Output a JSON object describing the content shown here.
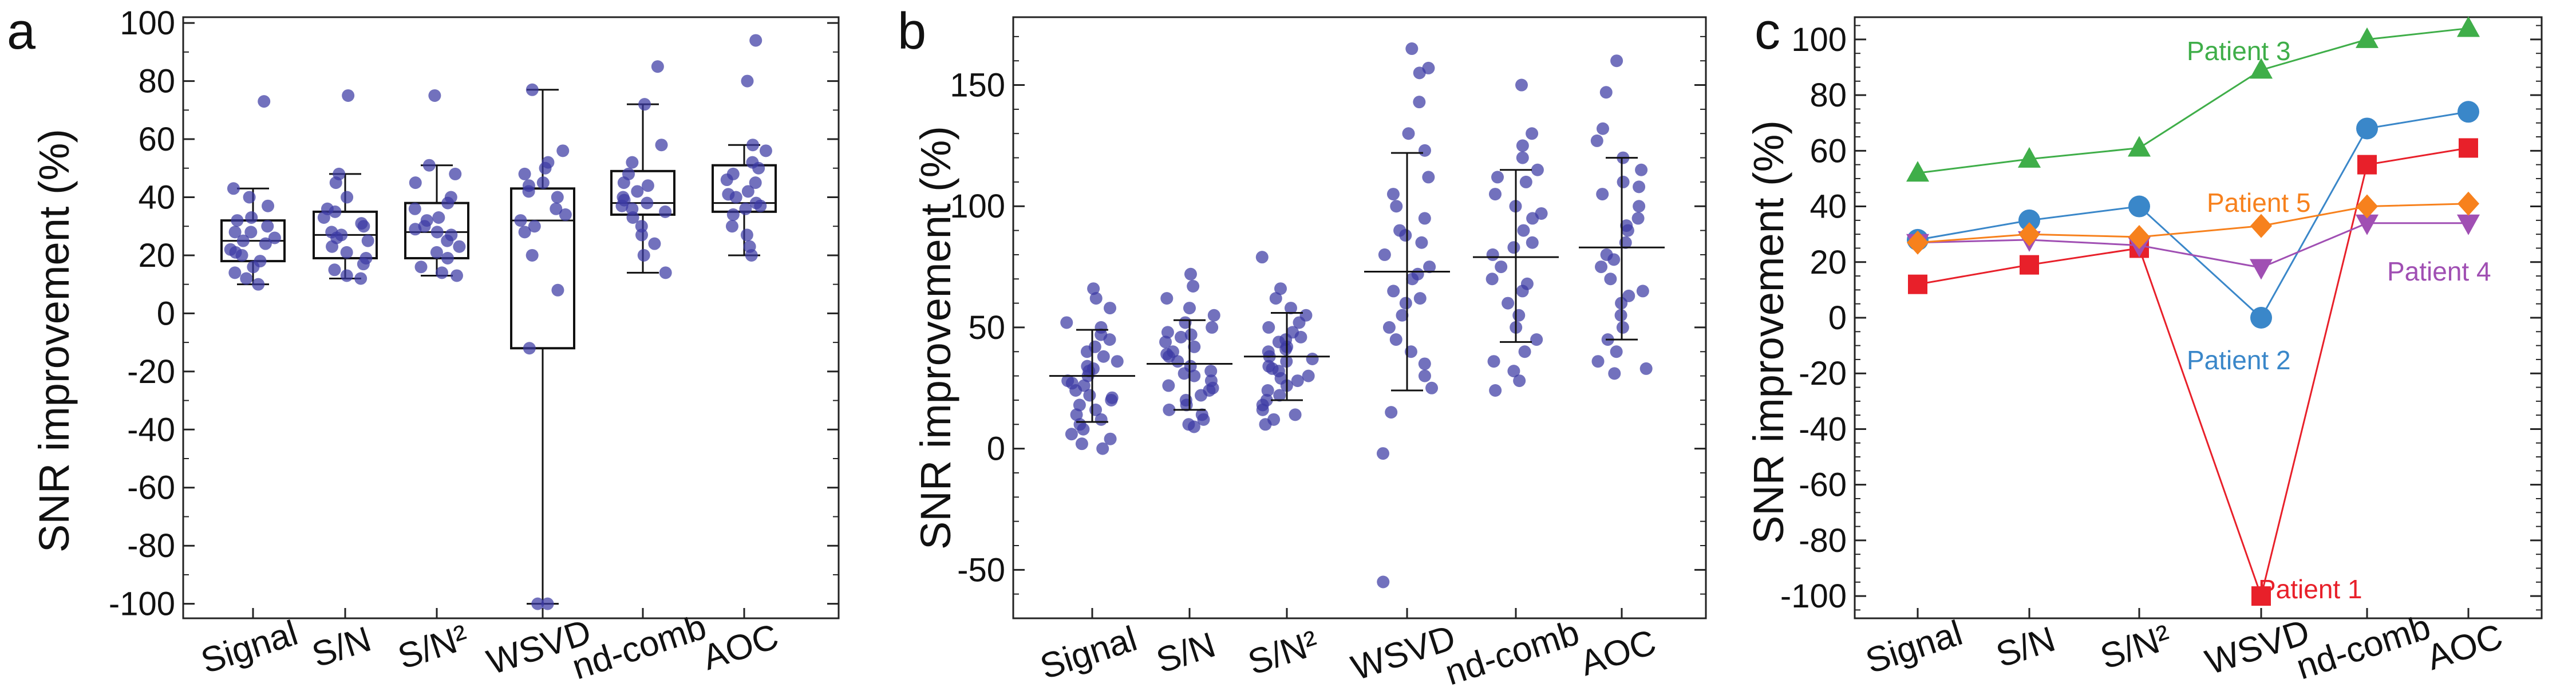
{
  "figure": {
    "panel_labels": [
      "a",
      "b",
      "c"
    ]
  },
  "chart_data": [
    {
      "id": "a",
      "type": "box",
      "panel_label": "a",
      "ylabel": "SNR improvement (%)",
      "categories": [
        "Signal",
        "S/N",
        "S/N²",
        "WSVD",
        "nd-comb",
        "AOC"
      ],
      "ylim": [
        -105,
        102
      ],
      "yticks": [
        100,
        80,
        60,
        40,
        20,
        0,
        -20,
        -40,
        -60,
        -80,
        -100
      ],
      "boxes": [
        {
          "q1": 18,
          "median": 25,
          "q3": 32,
          "whislo": 10,
          "whishi": 43
        },
        {
          "q1": 19,
          "median": 27,
          "q3": 35,
          "whislo": 12,
          "whishi": 48
        },
        {
          "q1": 19,
          "median": 28,
          "q3": 38,
          "whislo": 13,
          "whishi": 51
        },
        {
          "q1": -12,
          "median": 32,
          "q3": 43,
          "whislo": -100,
          "whishi": 77
        },
        {
          "q1": 34,
          "median": 38,
          "q3": 49,
          "whislo": 14,
          "whishi": 72
        },
        {
          "q1": 35,
          "median": 38,
          "q3": 51,
          "whislo": 20,
          "whishi": 58
        }
      ],
      "points": [
        [
          73,
          43,
          40,
          37,
          32,
          30,
          28,
          26,
          25,
          24,
          22,
          20,
          18,
          16,
          14,
          12,
          10,
          28,
          33,
          21
        ],
        [
          75,
          48,
          45,
          40,
          36,
          33,
          30,
          28,
          27,
          25,
          23,
          21,
          19,
          17,
          15,
          13,
          12,
          26,
          31,
          35
        ],
        [
          75,
          51,
          48,
          45,
          40,
          36,
          33,
          30,
          28,
          27,
          25,
          23,
          21,
          19,
          16,
          14,
          13,
          32,
          38,
          29
        ],
        [
          77,
          56,
          52,
          48,
          44,
          40,
          36,
          32,
          28,
          20,
          8,
          -12,
          -100,
          -100,
          45,
          30,
          34,
          50,
          42
        ],
        [
          85,
          72,
          58,
          52,
          48,
          45,
          42,
          40,
          38,
          36,
          35,
          33,
          30,
          27,
          24,
          20,
          14,
          44,
          39,
          37
        ],
        [
          94,
          80,
          58,
          56,
          52,
          48,
          45,
          42,
          40,
          38,
          36,
          34,
          30,
          27,
          23,
          20,
          50,
          41,
          37,
          46
        ]
      ]
    },
    {
      "id": "b",
      "type": "scatter",
      "panel_label": "b",
      "ylabel": "SNR improvement (%)",
      "categories": [
        "Signal",
        "S/N",
        "S/N²",
        "WSVD",
        "nd-comb",
        "AOC"
      ],
      "ylim": [
        -70,
        178
      ],
      "yticks": [
        150,
        100,
        50,
        0,
        -50
      ],
      "summary": [
        {
          "mean": 30,
          "low": 11,
          "high": 49
        },
        {
          "mean": 35,
          "low": 16,
          "high": 53
        },
        {
          "mean": 38,
          "low": 20,
          "high": 56
        },
        {
          "mean": 73,
          "low": 24,
          "high": 122
        },
        {
          "mean": 79,
          "low": 44,
          "high": 115
        },
        {
          "mean": 83,
          "low": 45,
          "high": 120
        }
      ],
      "points": [
        [
          66,
          62,
          58,
          52,
          50,
          47,
          45,
          42,
          40,
          38,
          36,
          34,
          32,
          30,
          28,
          26,
          24,
          22,
          20,
          18,
          16,
          14,
          12,
          10,
          8,
          6,
          4,
          2,
          0,
          33,
          27,
          21
        ],
        [
          72,
          67,
          62,
          58,
          55,
          52,
          50,
          48,
          46,
          44,
          42,
          40,
          38,
          36,
          34,
          32,
          30,
          28,
          26,
          24,
          22,
          20,
          18,
          16,
          14,
          12,
          10,
          9,
          39,
          31,
          25,
          47
        ],
        [
          79,
          66,
          62,
          58,
          55,
          52,
          50,
          48,
          46,
          44,
          42,
          40,
          38,
          36,
          34,
          32,
          30,
          28,
          26,
          24,
          22,
          20,
          18,
          16,
          14,
          12,
          10,
          41,
          37,
          29,
          33,
          45
        ],
        [
          165,
          157,
          155,
          143,
          130,
          123,
          112,
          105,
          100,
          95,
          90,
          85,
          80,
          75,
          70,
          65,
          60,
          55,
          50,
          45,
          40,
          35,
          30,
          25,
          15,
          -2,
          -55,
          88,
          72,
          62
        ],
        [
          150,
          130,
          125,
          120,
          115,
          110,
          105,
          100,
          95,
          90,
          85,
          80,
          75,
          70,
          65,
          60,
          55,
          50,
          45,
          40,
          36,
          32,
          28,
          24,
          112,
          97,
          83,
          68
        ],
        [
          160,
          147,
          132,
          127,
          120,
          115,
          110,
          105,
          100,
          95,
          90,
          85,
          80,
          75,
          70,
          65,
          60,
          55,
          50,
          45,
          40,
          36,
          33,
          31,
          108,
          92,
          78,
          63
        ]
      ]
    },
    {
      "id": "c",
      "type": "line",
      "panel_label": "c",
      "ylabel": "SNR improvement (%)",
      "categories": [
        "Signal",
        "S/N",
        "S/N²",
        "WSVD",
        "nd-comb",
        "AOC"
      ],
      "ylim": [
        -108,
        108
      ],
      "yticks": [
        100,
        80,
        60,
        40,
        20,
        0,
        -20,
        -40,
        -60,
        -80,
        -100
      ],
      "series": [
        {
          "name": "Patient 1",
          "color": "#e8202a",
          "marker": "square",
          "values": [
            12,
            19,
            25,
            -100,
            55,
            61
          ]
        },
        {
          "name": "Patient 2",
          "color": "#3a87c9",
          "marker": "circle",
          "values": [
            28,
            35,
            40,
            0,
            68,
            74
          ]
        },
        {
          "name": "Patient 3",
          "color": "#3fae49",
          "marker": "triangle-up",
          "values": [
            52,
            57,
            61,
            89,
            100,
            104
          ]
        },
        {
          "name": "Patient 4",
          "color": "#a04fb3",
          "marker": "triangle-down",
          "values": [
            27,
            28,
            26,
            18,
            34,
            34
          ]
        },
        {
          "name": "Patient 5",
          "color": "#f7811d",
          "marker": "diamond",
          "values": [
            27,
            30,
            29,
            33,
            40,
            41
          ]
        }
      ]
    }
  ]
}
